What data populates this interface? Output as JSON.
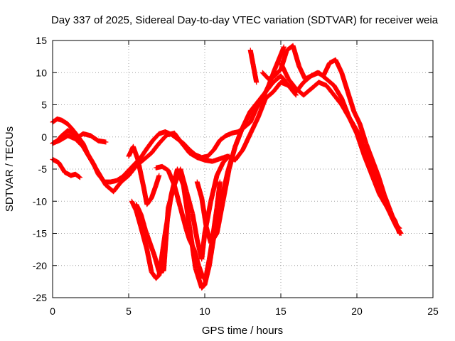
{
  "chart_data": {
    "type": "scatter",
    "title": "Day 337 of 2025, Sidereal Day-to-day VTEC variation (SDTVAR) for receiver weia",
    "xlabel": "GPS time / hours",
    "ylabel": "SDTVAR / TECUs",
    "xlim": [
      0,
      25
    ],
    "ylim": [
      -25,
      15
    ],
    "xticks": [
      0,
      5,
      10,
      15,
      20,
      25
    ],
    "yticks": [
      -25,
      -20,
      -15,
      -10,
      -5,
      0,
      5,
      10,
      15
    ],
    "grid": true,
    "legend": "none",
    "marker": "plus",
    "color": "#ff0000",
    "series": [
      {
        "x": [
          0.0,
          0.3,
          0.6,
          1.0,
          1.3,
          1.6,
          2.0,
          2.3,
          2.7,
          3.0,
          3.4,
          3.8,
          4.2,
          4.6,
          5.0,
          5.4,
          5.8,
          6.2,
          6.6,
          7.0,
          7.4,
          7.8,
          8.2,
          8.6,
          9.0,
          9.4,
          9.8,
          10.2,
          10.6,
          11.0,
          11.4,
          11.8,
          12.2,
          12.6,
          13.0,
          13.4,
          13.8,
          14.2,
          14.6,
          15.0,
          15.2
        ],
        "y": [
          2.3,
          2.8,
          2.6,
          2.0,
          1.2,
          0.3,
          -1.0,
          -2.6,
          -4.2,
          -5.8,
          -7.0,
          -7.0,
          -6.8,
          -6.2,
          -5.2,
          -4.2,
          -3.2,
          -1.8,
          -0.5,
          0.5,
          0.8,
          0.4,
          -0.3,
          -1.0,
          -2.0,
          -2.8,
          -3.2,
          -3.0,
          -2.0,
          -0.5,
          0.2,
          0.6,
          0.8,
          1.5,
          2.3,
          4.5,
          6.0,
          8.0,
          10.5,
          12.8,
          14.0
        ]
      },
      {
        "x": [
          0.0,
          0.3,
          0.6,
          1.0,
          1.3,
          1.7,
          2.0,
          2.5,
          3.0,
          3.5
        ],
        "y": [
          -1.0,
          -0.6,
          0.2,
          1.0,
          0.6,
          0.0,
          0.5,
          0.2,
          -0.6,
          -0.8
        ]
      },
      {
        "x": [
          0.0,
          0.4,
          0.8,
          1.2,
          1.5,
          1.8
        ],
        "y": [
          -3.5,
          -4.0,
          -5.5,
          -6.0,
          -5.8,
          -6.3
        ]
      },
      {
        "x": [
          0.0,
          0.5,
          1.0,
          1.5,
          2.0,
          2.5,
          3.0,
          3.5,
          4.0,
          4.5,
          5.0,
          5.5,
          6.0,
          6.5,
          7.0,
          7.5,
          8.0,
          8.5,
          9.0,
          9.5,
          10.0,
          10.5,
          11.0,
          11.5,
          12.0,
          12.5,
          13.0,
          13.5,
          14.0,
          14.5,
          15.0,
          15.5,
          16.0,
          16.5,
          17.0,
          17.5,
          18.0,
          18.5,
          19.0,
          19.5,
          20.0,
          20.5,
          21.0,
          21.5,
          22.0,
          22.5,
          22.8
        ],
        "y": [
          -1.0,
          -0.5,
          0.2,
          -0.3,
          -1.5,
          -3.5,
          -5.5,
          -7.5,
          -8.5,
          -7.0,
          -6.0,
          -4.5,
          -3.5,
          -2.5,
          -1.0,
          0.3,
          0.6,
          -1.0,
          -2.5,
          -3.2,
          -3.6,
          -3.8,
          -3.4,
          -3.0,
          -3.6,
          -2.0,
          0.5,
          3.0,
          6.0,
          7.0,
          8.5,
          8.0,
          7.0,
          8.5,
          9.5,
          10.0,
          9.0,
          8.0,
          6.0,
          3.0,
          1.0,
          -2.0,
          -5.0,
          -8.0,
          -11.0,
          -13.5,
          -14.2
        ]
      },
      {
        "x": [
          5.0,
          5.3,
          5.6,
          6.0,
          6.2,
          6.5,
          6.8,
          7.0
        ],
        "y": [
          -3.0,
          -1.5,
          -3.5,
          -8.0,
          -10.5,
          -9.5,
          -7.5,
          -6.0
        ]
      },
      {
        "x": [
          6.8,
          7.2,
          7.6,
          8.0,
          8.4,
          8.8,
          9.0,
          9.3,
          9.6,
          9.9,
          10.1,
          10.3,
          10.5,
          10.8,
          11.0
        ],
        "y": [
          -4.8,
          -4.6,
          -5.2,
          -7.5,
          -11.0,
          -14.5,
          -16.0,
          -17.5,
          -20.0,
          -22.0,
          -21.5,
          -19.0,
          -16.0,
          -11.0,
          -7.0
        ]
      },
      {
        "x": [
          5.5,
          5.8,
          6.1,
          6.4,
          6.7,
          7.0,
          7.3,
          7.6,
          8.0,
          8.4,
          8.8,
          9.2,
          9.5,
          9.8,
          10.0,
          10.4,
          10.8,
          11.2,
          11.6
        ],
        "y": [
          -10.5,
          -12.0,
          -14.5,
          -16.5,
          -18.5,
          -21.0,
          -20.8,
          -11.0,
          -7.5,
          -5.0,
          -8.5,
          -12.0,
          -16.0,
          -19.0,
          -15.0,
          -10.0,
          -6.0,
          -4.0,
          -3.0
        ]
      },
      {
        "x": [
          5.2,
          5.5,
          5.8,
          6.2,
          6.5,
          6.8,
          7.0,
          7.4,
          7.8,
          8.2,
          8.6,
          9.0,
          9.4,
          9.8,
          10.0,
          10.3,
          10.6,
          11.0,
          11.5,
          12.0,
          12.5,
          13.0,
          13.5,
          14.0,
          14.5,
          15.0,
          15.5,
          16.0
        ],
        "y": [
          -10.0,
          -11.5,
          -14.0,
          -17.5,
          -21.0,
          -22.0,
          -21.5,
          -15.0,
          -9.0,
          -5.0,
          -7.5,
          -14.0,
          -20.5,
          -23.5,
          -23.0,
          -20.0,
          -15.5,
          -11.0,
          -5.5,
          -1.5,
          1.5,
          4.0,
          5.5,
          7.0,
          8.5,
          9.5,
          8.0,
          6.5
        ]
      },
      {
        "x": [
          9.5,
          9.8,
          10.1,
          10.4,
          10.8,
          11.2,
          11.6,
          12.0,
          12.4,
          12.8,
          13.0
        ],
        "y": [
          -7.0,
          -9.5,
          -14.0,
          -16.5,
          -15.0,
          -10.0,
          -5.0,
          -1.5,
          1.0,
          3.0,
          4.0
        ]
      },
      {
        "x": [
          13.0,
          13.2,
          13.4
        ],
        "y": [
          13.5,
          11.0,
          8.5
        ]
      },
      {
        "x": [
          13.8,
          14.2,
          14.6,
          15.0,
          15.4,
          15.8,
          16.2,
          16.6,
          17.0,
          17.4,
          17.8,
          18.2,
          18.6,
          19.0,
          19.4,
          19.8,
          20.2,
          20.6,
          21.0,
          21.4,
          21.8,
          22.2,
          22.6,
          22.9
        ],
        "y": [
          10.0,
          9.0,
          9.5,
          10.5,
          13.5,
          14.2,
          11.0,
          9.0,
          9.5,
          10.0,
          9.5,
          11.5,
          12.0,
          10.0,
          7.0,
          4.0,
          2.0,
          -1.0,
          -3.5,
          -6.0,
          -9.0,
          -11.5,
          -14.0,
          -15.0
        ]
      },
      {
        "x": [
          15.0,
          15.5,
          16.0,
          16.5,
          17.0,
          17.5,
          18.0,
          18.5,
          19.0,
          19.5,
          20.0,
          20.5,
          21.0,
          21.5,
          22.0,
          22.5,
          22.8
        ],
        "y": [
          11.5,
          9.0,
          7.5,
          6.5,
          7.5,
          8.5,
          8.0,
          6.5,
          5.0,
          3.0,
          0.5,
          -3.0,
          -6.0,
          -9.0,
          -11.0,
          -13.0,
          -15.0
        ]
      }
    ]
  }
}
